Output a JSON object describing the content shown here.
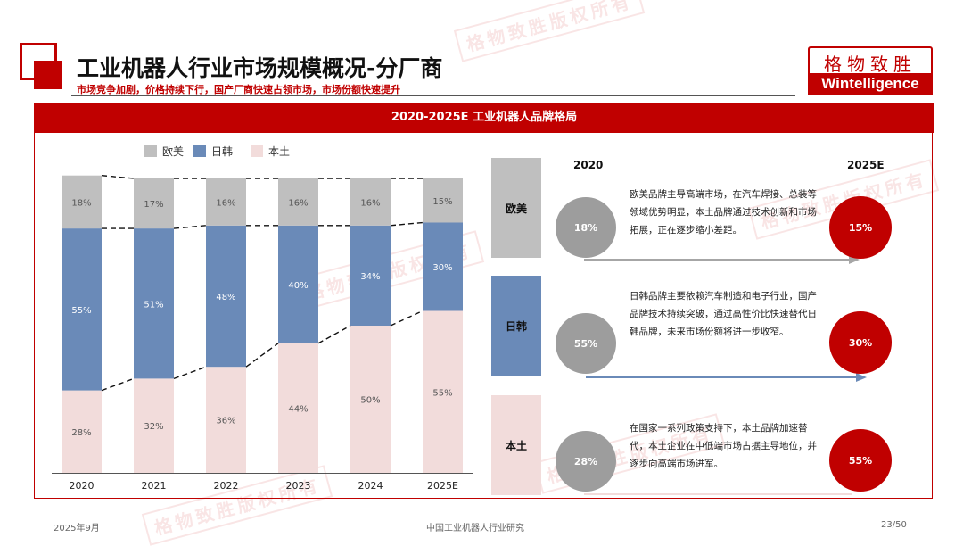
{
  "header": {
    "title": "工业机器人行业市场规模概况-分厂商",
    "subtitle": "市场竞争加剧，价格持续下行，国产厂商快速占领市场，市场份额快速提升"
  },
  "brand": {
    "cn": "格物致胜",
    "en": "Wintelligence"
  },
  "banner": {
    "title": "2020-2025E  工业机器人品牌格局"
  },
  "chart_data": {
    "type": "bar",
    "stacked": true,
    "categories": [
      "2020",
      "2021",
      "2022",
      "2023",
      "2024",
      "2025E"
    ],
    "series": [
      {
        "name": "本土",
        "color": "#f2dcdb",
        "values": [
          28,
          32,
          36,
          44,
          50,
          55
        ]
      },
      {
        "name": "日韩",
        "color": "#6a8ab8",
        "values": [
          55,
          51,
          48,
          40,
          34,
          30
        ]
      },
      {
        "name": "欧美",
        "color": "#bfbfbf",
        "values": [
          18,
          17,
          16,
          16,
          16,
          15
        ]
      }
    ],
    "legend_order": [
      "欧美",
      "日韩",
      "本土"
    ],
    "value_suffix": "%",
    "legend_position": "top"
  },
  "comparison": {
    "year_start": "2020",
    "year_end": "2025E",
    "rows": [
      {
        "label": "欧美",
        "start": "18%",
        "end": "15%",
        "desc": "欧美品牌主导高端市场，在汽车焊接、总装等领域优势明显，本土品牌通过技术创新和市场拓展，正在逐步缩小差距。",
        "box_color": "#bfbfbf",
        "arrow_color": "#a6a6a6"
      },
      {
        "label": "日韩",
        "start": "55%",
        "end": "30%",
        "desc": "日韩品牌主要依赖汽车制造和电子行业，国产品牌技术持续突破，通过高性价比快速替代日韩品牌，未来市场份额将进一步收窄。",
        "box_color": "#6a8ab8",
        "arrow_color": "#6a8ab8"
      },
      {
        "label": "本土",
        "start": "28%",
        "end": "55%",
        "desc": "在国家一系列政策支持下，本土品牌加速替代，本土企业在中低端市场占据主导地位，并逐步向高端市场进军。",
        "box_color": "#f2dcdb",
        "arrow_color": "#f2dcdb"
      }
    ]
  },
  "footer": {
    "date": "2025年9月",
    "center": "中国工业机器人行业研究",
    "page": "23/50"
  },
  "watermark": {
    "text": "格物致胜版权所有"
  }
}
